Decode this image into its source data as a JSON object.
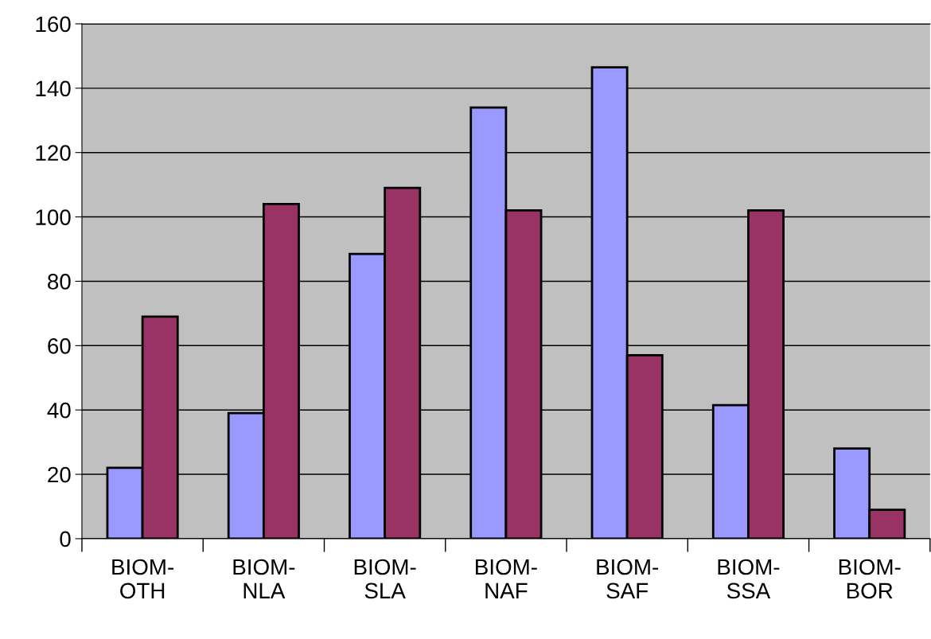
{
  "chart_data": {
    "type": "bar",
    "categories": [
      "BIOM-OTH",
      "BIOM-NLA",
      "BIOM-SLA",
      "BIOM-NAF",
      "BIOM-SAF",
      "BIOM-SSA",
      "BIOM-BOR"
    ],
    "series": [
      {
        "color": "#9999ff",
        "values": [
          22,
          39,
          88.5,
          134,
          146.5,
          41.5,
          28
        ]
      },
      {
        "color": "#993366",
        "values": [
          69,
          104,
          109,
          102,
          57,
          102,
          9
        ]
      }
    ],
    "ylim": [
      0,
      160
    ],
    "yticks": [
      0,
      20,
      40,
      60,
      80,
      100,
      120,
      140,
      160
    ],
    "grid": "y"
  }
}
